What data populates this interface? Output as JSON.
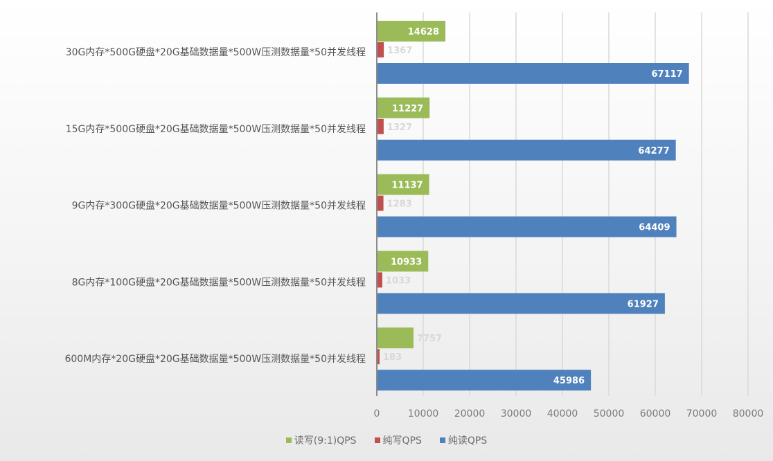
{
  "chart_data": {
    "type": "bar",
    "orientation": "horizontal",
    "categories": [
      "30G内存*500G硬盘*20G基础数据量*500W压测数据量*50并发线程",
      "15G内存*500G硬盘*20G基础数据量*500W压测数据量*50并发线程",
      "9G内存*300G硬盘*20G基础数据量*500W压测数据量*50并发线程",
      "8G内存*100G硬盘*20G基础数据量*500W压测数据量*50并发线程",
      "600M内存*20G硬盘*20G基础数据量*500W压测数据量*50并发线程"
    ],
    "series": [
      {
        "name": "读写(9:1)QPS",
        "color": "#9bbb59",
        "values": [
          14628,
          11227,
          11137,
          10933,
          7757
        ]
      },
      {
        "name": "纯写QPS",
        "color": "#c0504d",
        "values": [
          1367,
          1327,
          1283,
          1033,
          183
        ]
      },
      {
        "name": "纯读QPS",
        "color": "#4f81bd",
        "values": [
          67117,
          64277,
          64409,
          61927,
          45986
        ]
      }
    ],
    "xlim": [
      0,
      80000
    ],
    "xticks": [
      0,
      10000,
      20000,
      30000,
      40000,
      50000,
      60000,
      70000,
      80000
    ],
    "grid": true,
    "legend_position": "bottom"
  }
}
